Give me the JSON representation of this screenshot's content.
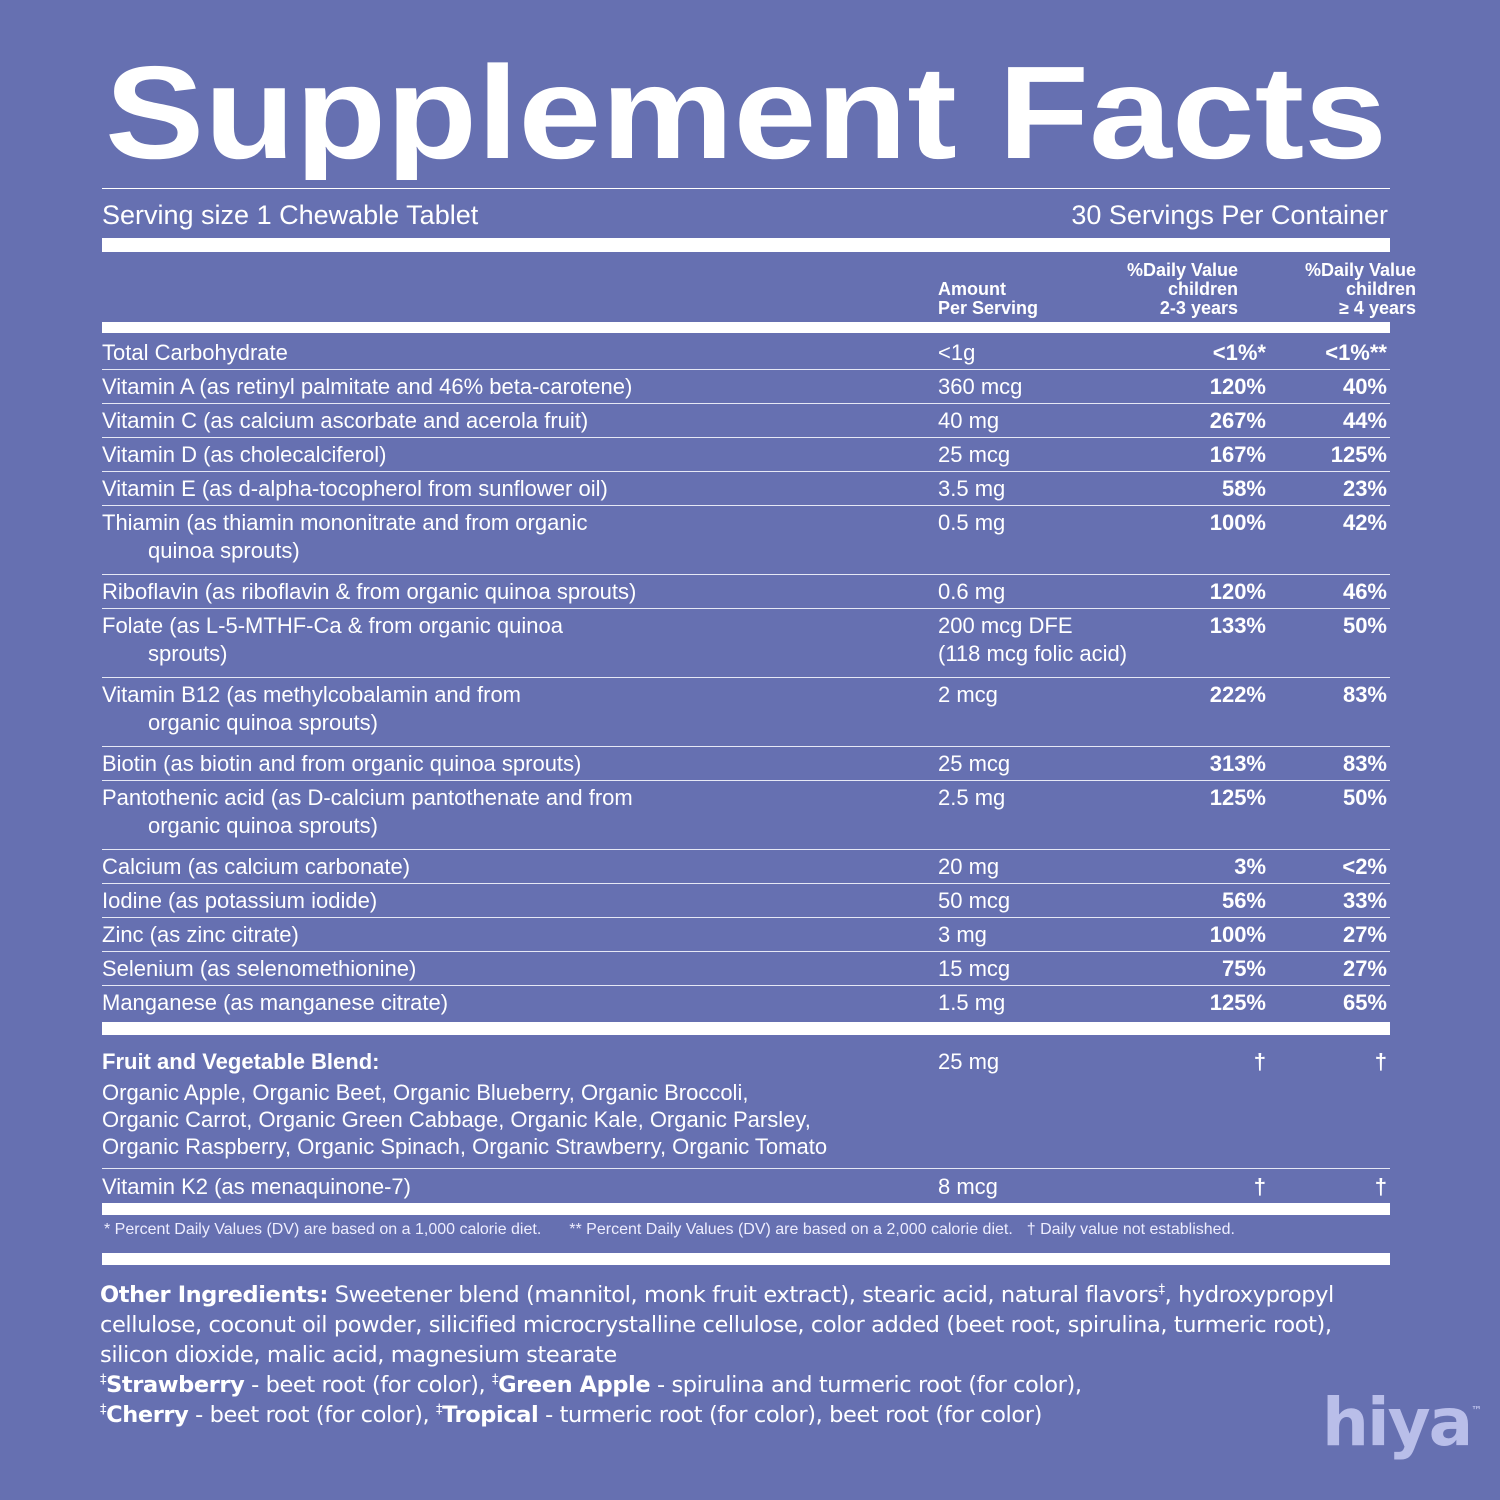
{
  "title": "Supplement Facts",
  "serving_size": "Serving size 1 Chewable Tablet",
  "servings_per_container": "30 Servings Per Container",
  "table": {
    "columns": [
      [
        "Amount",
        "Per Serving"
      ],
      [
        "%Daily Value",
        "children",
        "2-3 years"
      ],
      [
        "%Daily Value",
        "children",
        "≥ 4 years"
      ]
    ],
    "rows": [
      {
        "name": [
          "Total Carbohydrate"
        ],
        "amount": [
          "<1g"
        ],
        "dv_2_3": "<1%*",
        "dv_4_plus": "<1%**"
      },
      {
        "name": [
          "Vitamin A (as retinyl palmitate and 46% beta-carotene)"
        ],
        "amount": [
          "360 mcg"
        ],
        "dv_2_3": "120%",
        "dv_4_plus": "40%"
      },
      {
        "name": [
          "Vitamin C (as calcium ascorbate and acerola fruit)"
        ],
        "amount": [
          "40 mg"
        ],
        "dv_2_3": "267%",
        "dv_4_plus": "44%"
      },
      {
        "name": [
          "Vitamin D (as cholecalciferol)"
        ],
        "amount": [
          "25 mcg"
        ],
        "dv_2_3": "167%",
        "dv_4_plus": "125%"
      },
      {
        "name": [
          "Vitamin E (as d-alpha-tocopherol from sunflower oil)"
        ],
        "amount": [
          "3.5 mg"
        ],
        "dv_2_3": "58%",
        "dv_4_plus": "23%"
      },
      {
        "name": [
          "Thiamin (as thiamin mononitrate and from organic",
          "quinoa sprouts)"
        ],
        "amount": [
          "0.5 mg"
        ],
        "dv_2_3": "100%",
        "dv_4_plus": "42%"
      },
      {
        "name": [
          "Riboflavin (as riboflavin & from organic quinoa sprouts)"
        ],
        "amount": [
          "0.6 mg"
        ],
        "dv_2_3": "120%",
        "dv_4_plus": "46%"
      },
      {
        "name": [
          "Folate (as L-5-MTHF-Ca & from organic quinoa",
          "sprouts)"
        ],
        "amount": [
          "200 mcg DFE",
          "(118 mcg folic acid)"
        ],
        "dv_2_3": "133%",
        "dv_4_plus": "50%"
      },
      {
        "name": [
          "Vitamin B12 (as methylcobalamin and from",
          "organic quinoa sprouts)"
        ],
        "amount": [
          "2 mcg"
        ],
        "dv_2_3": "222%",
        "dv_4_plus": "83%"
      },
      {
        "name": [
          "Biotin (as biotin and from organic quinoa sprouts)"
        ],
        "amount": [
          "25 mcg"
        ],
        "dv_2_3": "313%",
        "dv_4_plus": "83%"
      },
      {
        "name": [
          "Pantothenic acid (as D-calcium pantothenate and from",
          "organic quinoa sprouts)"
        ],
        "amount": [
          "2.5 mg"
        ],
        "dv_2_3": "125%",
        "dv_4_plus": "50%"
      },
      {
        "name": [
          "Calcium (as calcium carbonate)"
        ],
        "amount": [
          "20 mg"
        ],
        "dv_2_3": "3%",
        "dv_4_plus": "<2%"
      },
      {
        "name": [
          "Iodine (as potassium iodide)"
        ],
        "amount": [
          "50 mcg"
        ],
        "dv_2_3": "56%",
        "dv_4_plus": "33%"
      },
      {
        "name": [
          "Zinc (as zinc citrate)"
        ],
        "amount": [
          "3 mg"
        ],
        "dv_2_3": "100%",
        "dv_4_plus": "27%"
      },
      {
        "name": [
          "Selenium (as selenomethionine)"
        ],
        "amount": [
          "15 mcg"
        ],
        "dv_2_3": "75%",
        "dv_4_plus": "27%"
      },
      {
        "name": [
          "Manganese (as manganese citrate)"
        ],
        "amount": [
          "1.5 mg"
        ],
        "dv_2_3": "125%",
        "dv_4_plus": "65%"
      }
    ],
    "blend": {
      "title": "Fruit and Vegetable Blend:",
      "ingredients": [
        "Organic Apple, Organic Beet, Organic Blueberry, Organic Broccoli,",
        "Organic Carrot, Organic Green Cabbage, Organic Kale, Organic Parsley,",
        "Organic Raspberry, Organic Spinach, Organic Strawberry, Organic Tomato"
      ],
      "amount": "25 mg",
      "dv_2_3": "†",
      "dv_4_plus": "†"
    },
    "extra_row": {
      "name": [
        "Vitamin K2 (as menaquinone-7)"
      ],
      "amount": [
        "8 mcg"
      ],
      "dv_2_3": "†",
      "dv_4_plus": "†"
    }
  },
  "footnotes": [
    "* Percent Daily Values (DV) are based on a 1,000 calorie diet.",
    "** Percent Daily Values (DV) are based on a 2,000 calorie diet.",
    "† Daily value not established."
  ],
  "other_ingredients": {
    "label": "Other Ingredients:",
    "text_1": "Sweetener blend (mannitol, monk fruit extract), stearic acid, natural flavors",
    "mark": "‡",
    "text_2": ", hydroxypropyl cellulose, coconut oil powder, silicified microcrystalline cellulose, color added (beet root, spirulina, turmeric root), silicon dioxide, malic acid, magnesium stearate",
    "flavors": [
      {
        "mark": "‡",
        "name": "Strawberry",
        "desc": "- beet root (for color),"
      },
      {
        "mark": "‡",
        "name": "Green Apple",
        "desc": "- spirulina and turmeric root (for color),"
      },
      {
        "mark": "‡",
        "name": "Cherry",
        "desc": "- beet root (for color),"
      },
      {
        "mark": "‡",
        "name": "Tropical",
        "desc": "- turmeric root (for color), beet root (for color)"
      }
    ]
  },
  "brand": {
    "name": "hiya",
    "tm": "™"
  }
}
